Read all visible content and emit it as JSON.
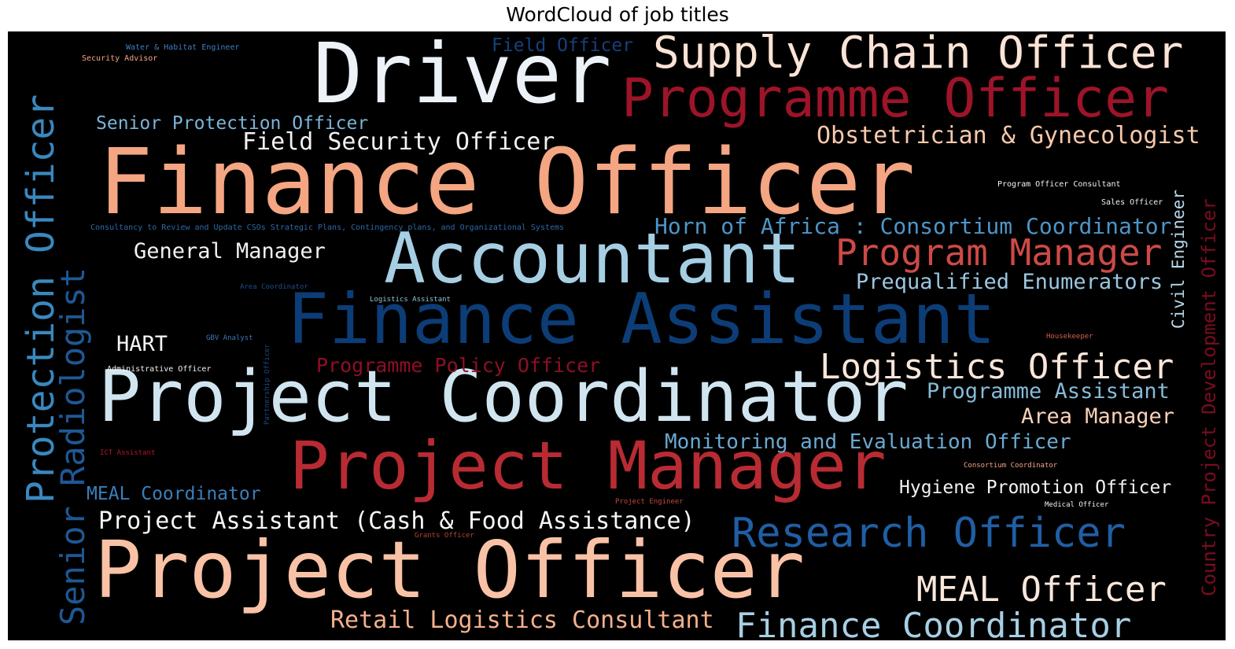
{
  "chart_data": {
    "type": "wordcloud",
    "title": "WordCloud of job titles",
    "colormap": "RdBu",
    "background": "#000000",
    "words": [
      {
        "text": "Finance Officer",
        "weight": 100,
        "color": "#f4a582"
      },
      {
        "text": "Driver",
        "weight": 82,
        "color": "#ecf2f7"
      },
      {
        "text": "Project Officer",
        "weight": 82,
        "color": "#f9c2a6"
      },
      {
        "text": "Project Coordinator",
        "weight": 75,
        "color": "#d1e5f0"
      },
      {
        "text": "Finance Assistant",
        "weight": 72,
        "color": "#0c3d77"
      },
      {
        "text": "Accountant",
        "weight": 70,
        "color": "#a7cfe4"
      },
      {
        "text": "Project Manager",
        "weight": 68,
        "color": "#b82b33"
      },
      {
        "text": "Programme Officer",
        "weight": 55,
        "color": "#9d1429"
      },
      {
        "text": "Supply Chain Officer",
        "weight": 48,
        "color": "#fbe3d6"
      },
      {
        "text": "Protection Officer",
        "weight": 45,
        "color": "#3a88bf"
      },
      {
        "text": "Research Officer",
        "weight": 45,
        "color": "#1f5fa4"
      },
      {
        "text": "Senior Radiologist",
        "weight": 42,
        "color": "#1e5895"
      },
      {
        "text": "Program Manager",
        "weight": 40,
        "color": "#cd4a46"
      },
      {
        "text": "Logistics Officer",
        "weight": 38,
        "color": "#fae6da"
      },
      {
        "text": "Finance Coordinator",
        "weight": 38,
        "color": "#a7cfe4"
      },
      {
        "text": "MEAL Officer",
        "weight": 36,
        "color": "#f9e7dc"
      },
      {
        "text": "Country Project Development Officer",
        "weight": 22,
        "color": "#7a0c1f"
      },
      {
        "text": "Obstetrician & Gynecologist",
        "weight": 28,
        "color": "#f9c9ab"
      },
      {
        "text": "Field Security Officer",
        "weight": 27,
        "color": "#f2f2f2"
      },
      {
        "text": "Project Assistant (Cash & Food Assistance)",
        "weight": 27,
        "color": "#f7f7f7"
      },
      {
        "text": "Retail Logistics Consultant",
        "weight": 27,
        "color": "#f4b08c"
      },
      {
        "text": "Horn of Africa : Consortium Coordinator",
        "weight": 25,
        "color": "#4d95c7"
      },
      {
        "text": "General Manager",
        "weight": 25,
        "color": "#f2f2f2"
      },
      {
        "text": "Prequalified Enumerators",
        "weight": 25,
        "color": "#9bc6e0"
      },
      {
        "text": "HART",
        "weight": 25,
        "color": "#f7f7f7"
      },
      {
        "text": "Programme Assistant",
        "weight": 25,
        "color": "#86bbd9"
      },
      {
        "text": "Area Manager",
        "weight": 25,
        "color": "#f9d1b8"
      },
      {
        "text": "Monitoring and Evaluation Officer",
        "weight": 24,
        "color": "#6aa9d1"
      },
      {
        "text": "Programme Policy Officer",
        "weight": 23,
        "color": "#8e0f27"
      },
      {
        "text": "Hygiene Promotion Officer",
        "weight": 21,
        "color": "#f2f2f2"
      },
      {
        "text": "Senior Protection Officer",
        "weight": 21,
        "color": "#7ab4d8"
      },
      {
        "text": "Field Officer",
        "weight": 21,
        "color": "#16417a"
      },
      {
        "text": "MEAL Coordinator",
        "weight": 21,
        "color": "#3a7fba"
      },
      {
        "text": "Civil Engineer",
        "weight": 18,
        "color": "#b8d7e9"
      },
      {
        "text": "Consultancy to Review and Update CSOs Strategic Plans, Contingency plans, and Organizational Systems",
        "weight": 8,
        "color": "#2c6aa8"
      },
      {
        "text": "Water & Habitat Engineer",
        "weight": 8,
        "color": "#3f7fbf"
      },
      {
        "text": "Security Advisor",
        "weight": 8,
        "color": "#f4a582"
      },
      {
        "text": "Program Officer Consultant",
        "weight": 8,
        "color": "#f2f2f2"
      },
      {
        "text": "Sales Officer",
        "weight": 8,
        "color": "#f2f2f2"
      },
      {
        "text": "Area Coordinator",
        "weight": 7,
        "color": "#1e4f88"
      },
      {
        "text": "Logistics Assistant",
        "weight": 7,
        "color": "#8fc0dd"
      },
      {
        "text": "GBV Analyst",
        "weight": 7,
        "color": "#3c79b5"
      },
      {
        "text": "Partnership Officer",
        "weight": 7,
        "color": "#1a4a85"
      },
      {
        "text": "Administrative Officer",
        "weight": 8,
        "color": "#f2f2f2"
      },
      {
        "text": "Housekeeper",
        "weight": 7,
        "color": "#d6604d"
      },
      {
        "text": "ICT Assistant",
        "weight": 7,
        "color": "#b2182b"
      },
      {
        "text": "Consortium Coordinator",
        "weight": 7,
        "color": "#f4a582"
      },
      {
        "text": "Project Engineer",
        "weight": 7,
        "color": "#c9463f"
      },
      {
        "text": "Medical Officer",
        "weight": 7,
        "color": "#f2f2f2"
      },
      {
        "text": "Grants Officer",
        "weight": 7,
        "color": "#b2452f"
      }
    ]
  }
}
